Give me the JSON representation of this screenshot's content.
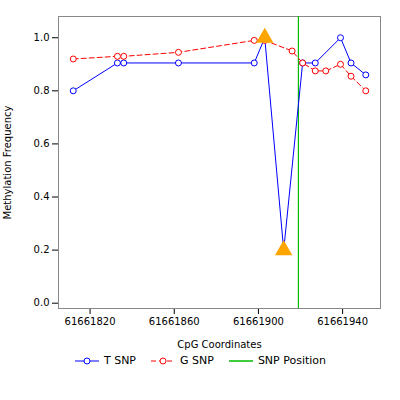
{
  "chart_data": {
    "type": "line",
    "xlabel": "CpG Coordinates",
    "ylabel": "Methylation Frequency",
    "series": [
      {
        "name": "T SNP",
        "color": "blue",
        "line_style": "solid",
        "marker": "circle",
        "x": [
          61661812,
          61661833,
          61661836,
          61661862,
          61661898,
          61661903,
          61661912,
          61661921,
          61661927,
          61661939,
          61661944,
          61661951
        ],
        "values": [
          0.8,
          0.905,
          0.905,
          0.905,
          0.905,
          1.0,
          0.2,
          0.905,
          0.905,
          1.0,
          0.905,
          0.86
        ]
      },
      {
        "name": "G SNP",
        "color": "red",
        "line_style": "dashed",
        "marker": "circle",
        "x": [
          61661812,
          61661833,
          61661836,
          61661862,
          61661898,
          61661903,
          61661916,
          61661921,
          61661927,
          61661932,
          61661939,
          61661944,
          61661951
        ],
        "values": [
          0.92,
          0.93,
          0.93,
          0.945,
          0.99,
          0.99,
          0.95,
          0.905,
          0.875,
          0.875,
          0.9,
          0.855,
          0.8
        ]
      }
    ],
    "vlines": [
      {
        "name": "SNP Position",
        "x": 61661919,
        "color": "#00bb00"
      }
    ],
    "markers": {
      "x": [
        61661903,
        61661912
      ],
      "values": [
        1.0,
        0.2
      ],
      "color": "#FFA500",
      "marker": "triangle"
    },
    "xlim": [
      61661805,
      61661958
    ],
    "ylim": [
      -0.02,
      1.08
    ],
    "xticks": [
      61661820,
      61661860,
      61661900,
      61661940
    ],
    "yticks": [
      {
        "value": 0.0,
        "label": "0.0"
      },
      0.2,
      0.4,
      0.6,
      0.8,
      {
        "value": 1.0,
        "label": "1.0"
      }
    ],
    "grid": false,
    "legend": "bottom"
  }
}
